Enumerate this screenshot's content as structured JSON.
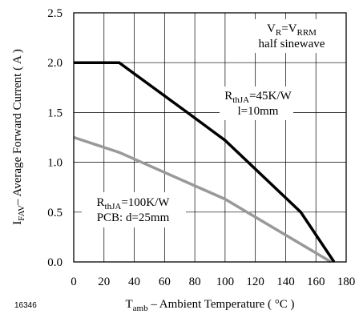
{
  "figure_number": "16346",
  "chart_data": {
    "type": "line",
    "xlabel": {
      "main": "T",
      "sub": "amb",
      "rest": " – Ambient Temperature ( °C )"
    },
    "ylabel": {
      "main": "I",
      "sub": "FAV",
      "rest": "– Average Forward Current ( A )"
    },
    "xlim": [
      0,
      180
    ],
    "ylim": [
      0,
      2.5
    ],
    "xticks": [
      0,
      20,
      40,
      60,
      80,
      100,
      120,
      140,
      160,
      180
    ],
    "yticks": [
      "0.0",
      "0.5",
      "1.0",
      "1.5",
      "2.0",
      "2.5"
    ],
    "grid": true,
    "series": [
      {
        "name": "RthJA=45K/W l=10mm",
        "color": "#000000",
        "x": [
          0,
          30,
          75,
          100,
          150,
          172
        ],
        "y": [
          2.0,
          2.0,
          1.5,
          1.22,
          0.5,
          0.0
        ]
      },
      {
        "name": "RthJA=100K/W PCB: d=25mm",
        "color": "#999999",
        "x": [
          0,
          30,
          100,
          170
        ],
        "y": [
          1.25,
          1.1,
          0.63,
          0.0
        ]
      }
    ],
    "annotations": {
      "conditions": {
        "line1_a": "V",
        "line1_a_sub": "R",
        "line1_b": "=V",
        "line1_b_sub": "RRM",
        "line2": "half sinewave"
      },
      "curve_45": {
        "a": "R",
        "a_sub": "thJA",
        "b": "=45K/W",
        "line2": "l=10mm"
      },
      "curve_100": {
        "a": "R",
        "a_sub": "thJA",
        "b": "=100K/W",
        "line2": "PCB: d=25mm"
      }
    }
  }
}
